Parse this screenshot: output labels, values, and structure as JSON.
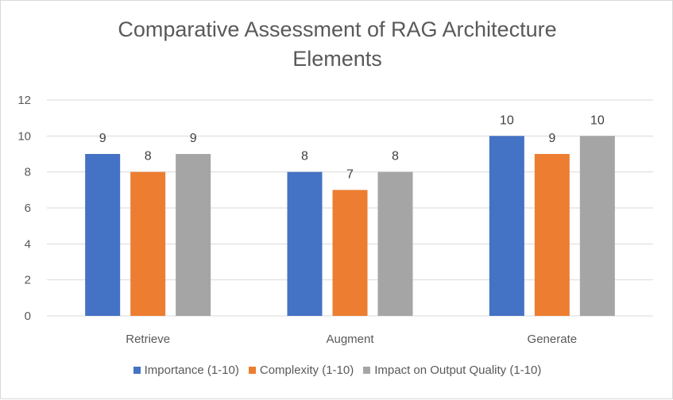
{
  "chart_data": {
    "type": "bar",
    "title_lines": [
      "Comparative Assessment of RAG Architecture",
      "Elements"
    ],
    "categories": [
      "Retrieve",
      "Augment",
      "Generate"
    ],
    "series": [
      {
        "name": "Importance (1-10)",
        "color": "#4472C4",
        "values": [
          9,
          8,
          10
        ]
      },
      {
        "name": "Complexity (1-10)",
        "color": "#ED7D31",
        "values": [
          8,
          7,
          9
        ]
      },
      {
        "name": "Impact on Output Quality (1-10)",
        "color": "#A5A5A5",
        "values": [
          9,
          8,
          10
        ]
      }
    ],
    "y_ticks": [
      "0",
      "2",
      "4",
      "6",
      "8",
      "10",
      "12"
    ],
    "ylim": [
      0,
      12
    ],
    "grid": true,
    "data_labels": true,
    "legend_position": "bottom"
  }
}
